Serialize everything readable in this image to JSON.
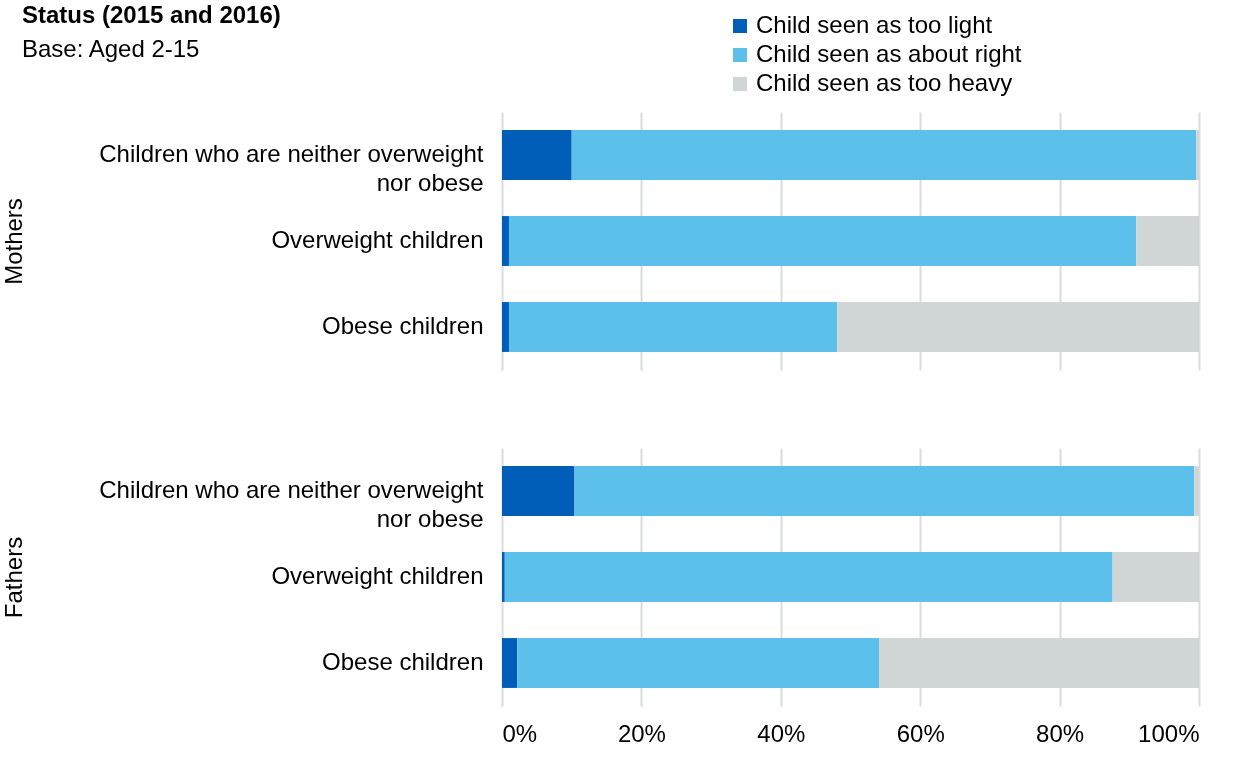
{
  "chart_data": [
    {
      "type": "bar",
      "orientation": "horizontal",
      "stacked": true,
      "title": "Status (2015 and 2016)",
      "subtitle": "Base: Aged 2-15",
      "ylabel": "Mothers",
      "categories": [
        "Children who are neither overweight nor obese",
        "Overweight children",
        "Obese children"
      ],
      "series": [
        {
          "name": "Child seen as too light",
          "color": "#005eb8",
          "values": [
            10,
            1,
            1
          ]
        },
        {
          "name": "Child seen as about right",
          "color": "#5dc0ea",
          "values": [
            89.6,
            90,
            47.1
          ]
        },
        {
          "name": "Child seen as too heavy",
          "color": "#d0d6d6",
          "values": [
            0.4,
            9,
            51.9
          ]
        }
      ],
      "xlim": [
        0,
        100
      ],
      "xticks": [
        {
          "value": 0,
          "label": null
        },
        {
          "value": 20,
          "label": null
        },
        {
          "value": 40,
          "label": null
        },
        {
          "value": 60,
          "label": null
        },
        {
          "value": 80,
          "label": null
        },
        {
          "value": 100,
          "label": null
        }
      ],
      "grid": "x",
      "legend": "top right",
      "tick_labels": "y"
    },
    {
      "type": "bar",
      "orientation": "horizontal",
      "stacked": true,
      "ylabel": "Fathers",
      "categories": [
        "Children who are neither overweight nor obese",
        "Overweight children",
        "Obese children"
      ],
      "series": [
        {
          "color": "#005eb8",
          "values": [
            10.4,
            0.4,
            2.2
          ]
        },
        {
          "color": "#5dc0ea",
          "values": [
            88.9,
            87.2,
            51.9
          ]
        },
        {
          "color": "#d0d6d6",
          "values": [
            0.7,
            12.4,
            45.9
          ]
        }
      ],
      "xlim": [
        0,
        100
      ],
      "xticks": [
        {
          "value": 0,
          "label": "0%"
        },
        {
          "value": 20,
          "label": "20%"
        },
        {
          "value": 40,
          "label": "40%"
        },
        {
          "value": 60,
          "label": "60%"
        },
        {
          "value": 80,
          "label": "80%"
        },
        {
          "value": 100,
          "label": "100%"
        }
      ],
      "grid": "x"
    }
  ]
}
